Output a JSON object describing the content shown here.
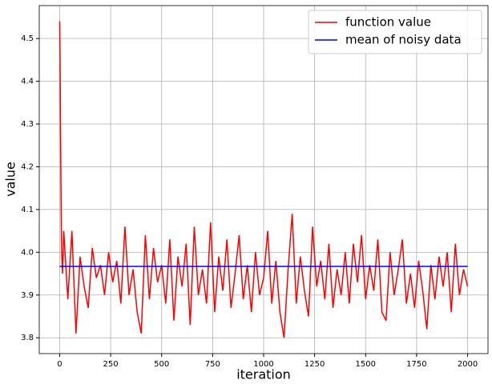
{
  "chart_data": {
    "type": "line",
    "xlabel": "iteration",
    "ylabel": "value",
    "xlim": [
      -100,
      2100
    ],
    "ylim": [
      3.763,
      4.577
    ],
    "xticks": [
      0,
      250,
      500,
      750,
      1000,
      1250,
      1500,
      1750,
      2000
    ],
    "yticks": [
      {
        "value": 3.8,
        "label": "3.8"
      },
      {
        "value": 3.9,
        "label": "3.9"
      },
      {
        "value": 4.0,
        "label": "4.0"
      },
      {
        "value": 4.1,
        "label": "4.1"
      },
      {
        "value": 4.2,
        "label": "4.2"
      },
      {
        "value": 4.3,
        "label": "4.3"
      },
      {
        "value": 4.4,
        "label": "4.4"
      },
      {
        "value": 4.5,
        "label": "4.5"
      }
    ],
    "grid": true,
    "legend": "upper right",
    "series": [
      {
        "name": "function value",
        "color": "#ff0000",
        "x": [
          0,
          2,
          4,
          6,
          8,
          10,
          14,
          20,
          40,
          60,
          80,
          100,
          120,
          140,
          160,
          180,
          200,
          220,
          240,
          260,
          280,
          300,
          320,
          340,
          360,
          380,
          400,
          420,
          440,
          460,
          480,
          500,
          520,
          540,
          560,
          580,
          600,
          620,
          640,
          660,
          680,
          700,
          720,
          740,
          760,
          780,
          800,
          820,
          840,
          860,
          880,
          900,
          920,
          940,
          960,
          980,
          1000,
          1020,
          1040,
          1060,
          1080,
          1100,
          1120,
          1140,
          1160,
          1180,
          1200,
          1220,
          1240,
          1260,
          1280,
          1300,
          1320,
          1340,
          1360,
          1380,
          1400,
          1420,
          1440,
          1460,
          1480,
          1500,
          1520,
          1540,
          1560,
          1580,
          1600,
          1620,
          1640,
          1660,
          1680,
          1700,
          1720,
          1740,
          1760,
          1780,
          1800,
          1820,
          1840,
          1860,
          1880,
          1900,
          1920,
          1940,
          1960,
          1980,
          2000
        ],
        "values": [
          4.54,
          4.45,
          4.3,
          4.18,
          4.07,
          4.0,
          3.95,
          4.05,
          3.89,
          4.05,
          3.81,
          3.99,
          3.92,
          3.87,
          4.01,
          3.94,
          3.97,
          3.9,
          4.0,
          3.93,
          3.98,
          3.88,
          4.06,
          3.9,
          3.96,
          3.86,
          3.81,
          4.04,
          3.89,
          4.01,
          3.93,
          3.97,
          3.88,
          4.03,
          3.84,
          3.99,
          3.92,
          4.02,
          3.83,
          4.06,
          3.9,
          3.96,
          3.88,
          4.07,
          3.86,
          3.99,
          3.91,
          4.03,
          3.87,
          3.95,
          4.04,
          3.89,
          3.97,
          3.86,
          4.0,
          3.9,
          3.94,
          4.05,
          3.88,
          3.98,
          3.86,
          3.8,
          3.96,
          4.09,
          3.88,
          3.99,
          3.91,
          3.85,
          4.06,
          3.92,
          3.98,
          3.89,
          4.02,
          3.87,
          3.96,
          3.9,
          4.0,
          3.88,
          4.02,
          3.93,
          4.04,
          3.89,
          3.97,
          3.91,
          4.03,
          3.86,
          3.84,
          4.0,
          3.9,
          3.96,
          4.03,
          3.88,
          3.95,
          3.87,
          3.98,
          3.91,
          3.82,
          3.97,
          3.89,
          3.99,
          3.92,
          4.0,
          3.86,
          4.02,
          3.9,
          3.96,
          3.92
        ]
      },
      {
        "name": "mean of noisy data",
        "color": "#0000ff",
        "x": [
          0,
          2000
        ],
        "values": [
          3.967,
          3.967
        ]
      }
    ]
  }
}
